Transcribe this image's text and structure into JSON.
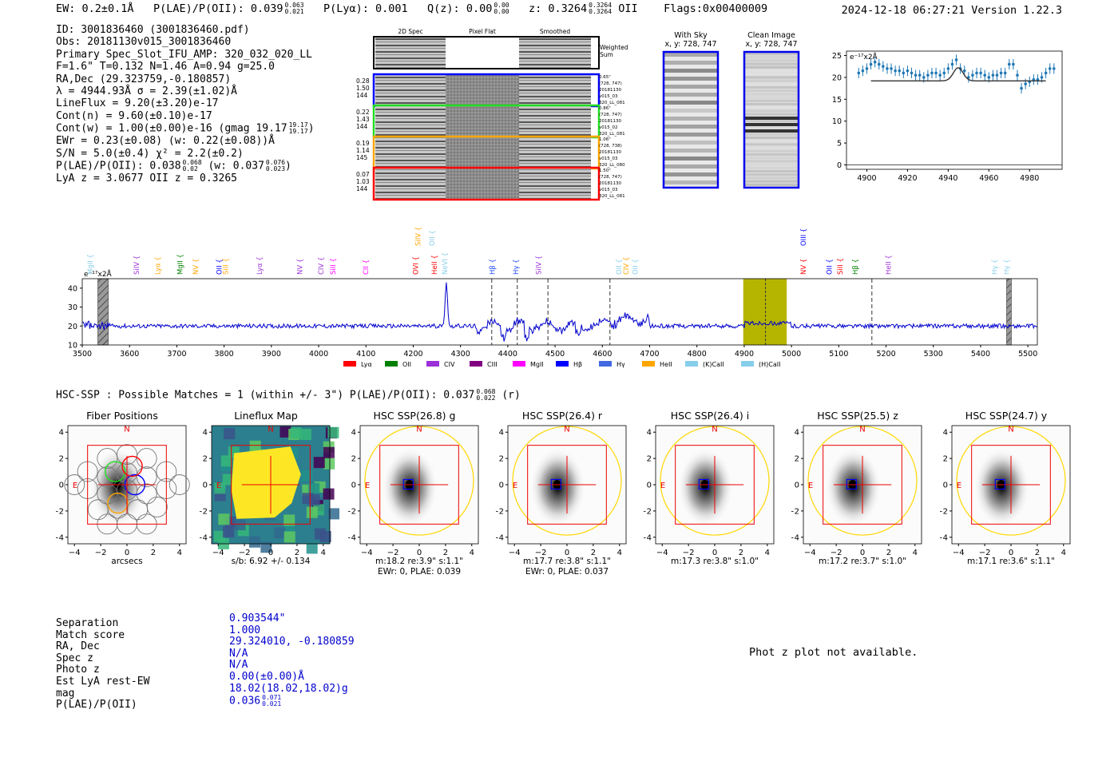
{
  "header": {
    "ew": "EW: 0.2±0.1Å",
    "plae_label": "P(LAE)/P(OII): 0.039",
    "plae_hi": "0.063",
    "plae_lo": "0.021",
    "plya": "P(Lyα): 0.001",
    "qz_label": "Q(z): 0.00",
    "qz_hi": "0.00",
    "qz_lo": "0.00",
    "z_label": "z: 0.3264",
    "z_hi": "0.3264",
    "z_lo": "0.3264",
    "z_line": "OII",
    "flags": "Flags:0x00400009",
    "timestamp": "2024-12-18 06:27:21  Version 1.22.3"
  },
  "info": {
    "id": "ID: 3001836460 (3001836460.pdf)",
    "obs": "Obs: 20181130v015_3001836460",
    "primary": "Primary Spec_Slot_IFU_AMP: 320_032_020_LL",
    "fit": "F=1.6\"  T=0.132  N=1.46  A=0.94  g=25.0",
    "radec": "RA,Dec (29.323759,-0.180857)",
    "lambda": "λ = 4944.93Å  σ = 2.39(±1.02)Å",
    "lineflux": "LineFlux = 9.20(±3.20)e-17",
    "contn": "Cont(n) = 9.60(±0.10)e-17",
    "contw": "Cont(w) = 1.00(±0.00)e-16 (gmag 19.17",
    "contw_hi": "19.17",
    "contw_lo": "19.17",
    "contw_end": ")",
    "ewr": "EWr = 0.23(±0.08) (w: 0.22(±0.08))Å",
    "sn": "S/N = 5.0(±0.4)  χ² = 2.2(±0.2)",
    "plae": "P(LAE)/P(OII): 0.038",
    "plae_hi": "0.068",
    "plae_lo": "0.02",
    "plae_w": "(w: 0.037",
    "plae_w_hi": "0.076",
    "plae_w_lo": "0.023",
    "plae_end": ")",
    "lya_oii": "LyA z = 3.0677  OII z = 0.3265"
  },
  "twod": {
    "col_headers": [
      "2D Spec",
      "Pixel Flat",
      "Smoothed"
    ],
    "weighted_sum": "Weighted Sum",
    "rows": [
      {
        "left": [
          "0.28",
          "1.50",
          "144"
        ],
        "right": [
          "0.65\"",
          "(728, 747)",
          "20181130",
          "v015_03",
          "320_LL_081"
        ],
        "color": "#0000ff"
      },
      {
        "left": [
          "0.22",
          "1.43",
          "144"
        ],
        "right": [
          "0.86\"",
          "(728, 747)",
          "20181130",
          "v015_02",
          "320_LL_081"
        ],
        "color": "#22dd22"
      },
      {
        "left": [
          "0.19",
          "1.14",
          "145"
        ],
        "right": [
          "1.06\"",
          "(728, 738)",
          "20181130",
          "v015_03",
          "320_LL_080"
        ],
        "color": "#ffa500"
      },
      {
        "left": [
          "0.07",
          "1.03",
          "144"
        ],
        "right": [
          "1.50\"",
          "(728, 747)",
          "20181130",
          "v015_03",
          "320_LL_081"
        ],
        "color": "#ff0000"
      }
    ]
  },
  "sky": {
    "with_sky_title": "With Sky",
    "with_sky_coords": "x, y: 728, 747",
    "clean_title": "Clean Image",
    "clean_coords": "x, y: 728, 747"
  },
  "colors": {
    "spectrum": "#0000cc",
    "emission_hl": "#b5b500",
    "fiber_blue": "#0000ff",
    "fiber_green": "#22dd22",
    "fiber_orange": "#ffa500",
    "fiber_red": "#ff0000",
    "aperture": "#ffd700"
  },
  "chart_data": [
    {
      "id": "zoom-spectrum",
      "type": "line",
      "unit_label": "e⁻¹⁷x2Å",
      "xlim": [
        4890,
        4996
      ],
      "ylim": [
        -1,
        26
      ],
      "xticks": [
        4900,
        4920,
        4940,
        4960,
        4980
      ],
      "yticks": [
        0,
        5,
        10,
        15,
        20,
        25
      ],
      "points": [
        [
          4896,
          21
        ],
        [
          4898,
          21.5
        ],
        [
          4900,
          22
        ],
        [
          4902,
          23
        ],
        [
          4904,
          23.5
        ],
        [
          4906,
          23
        ],
        [
          4908,
          22.5
        ],
        [
          4910,
          22
        ],
        [
          4912,
          22
        ],
        [
          4914,
          21.5
        ],
        [
          4916,
          21.5
        ],
        [
          4918,
          21
        ],
        [
          4920,
          21.5
        ],
        [
          4922,
          21
        ],
        [
          4924,
          20.5
        ],
        [
          4926,
          20.5
        ],
        [
          4928,
          20
        ],
        [
          4930,
          20.5
        ],
        [
          4932,
          21
        ],
        [
          4934,
          21
        ],
        [
          4936,
          20.5
        ],
        [
          4938,
          21
        ],
        [
          4940,
          22
        ],
        [
          4942,
          23
        ],
        [
          4944,
          24
        ],
        [
          4946,
          22
        ],
        [
          4948,
          21.5
        ],
        [
          4950,
          20
        ],
        [
          4952,
          20.5
        ],
        [
          4954,
          21
        ],
        [
          4956,
          21
        ],
        [
          4958,
          20.5
        ],
        [
          4960,
          20
        ],
        [
          4962,
          20.5
        ],
        [
          4964,
          20.5
        ],
        [
          4966,
          21
        ],
        [
          4968,
          21
        ],
        [
          4970,
          23
        ],
        [
          4972,
          23
        ],
        [
          4974,
          20.5
        ],
        [
          4976,
          17.5
        ],
        [
          4978,
          18.5
        ],
        [
          4980,
          19
        ],
        [
          4982,
          19.5
        ],
        [
          4984,
          19.5
        ],
        [
          4986,
          20
        ],
        [
          4988,
          21
        ],
        [
          4990,
          22
        ],
        [
          4992,
          22
        ]
      ],
      "fit": {
        "center": 4944.93,
        "sigma": 2.39,
        "base": 19.2,
        "peak": 3.0
      }
    },
    {
      "id": "full-spectrum",
      "type": "line",
      "unit_label": "e⁻¹⁷x2Å",
      "xlim": [
        3500,
        5520
      ],
      "ylim": [
        10,
        45
      ],
      "xticks": [
        3500,
        3600,
        3700,
        3800,
        3900,
        4000,
        4100,
        4200,
        4300,
        4400,
        4500,
        4600,
        4700,
        4800,
        4900,
        5000,
        5100,
        5200,
        5300,
        5400,
        5500
      ],
      "yticks": [
        10,
        20,
        30,
        40
      ],
      "highlight": [
        4898,
        4990
      ],
      "highlight_center": 4945,
      "hatched_bands": [
        [
          3533,
          3555
        ],
        [
          5455,
          5465
        ]
      ],
      "dashed_lines": [
        4366,
        4420,
        4485,
        4616,
        5170
      ],
      "peak": {
        "x": 4270,
        "y": 43
      },
      "upper_labels": [
        {
          "text": "SiIV",
          "x": 4215,
          "color": "#ffa500"
        },
        {
          "text": "OII",
          "x": 4245,
          "color": "#87ceeb"
        },
        {
          "text": "OIII",
          "x": 5030,
          "color": "#0000ff"
        }
      ],
      "lines_labels": [
        {
          "text": "MgII",
          "x": 3522,
          "color": "#87ceeb"
        },
        {
          "text": "SiIV",
          "x": 3620,
          "color": "#9b30d9"
        },
        {
          "text": "Lyα",
          "x": 3665,
          "color": "#ffa500"
        },
        {
          "text": "MgII",
          "x": 3712,
          "color": "#008000"
        },
        {
          "text": "NV",
          "x": 3745,
          "color": "#ffa500"
        },
        {
          "text": "OII",
          "x": 3795,
          "color": "#0000ff"
        },
        {
          "text": "SiII",
          "x": 3808,
          "color": "#ffa500"
        },
        {
          "text": "Lyα",
          "x": 3880,
          "color": "#9b30d9"
        },
        {
          "text": "NV",
          "x": 3965,
          "color": "#9b30d9"
        },
        {
          "text": "CIV",
          "x": 4010,
          "color": "#9b30d9"
        },
        {
          "text": "SiII",
          "x": 4035,
          "color": "#ff00ff"
        },
        {
          "text": "CII",
          "x": 4105,
          "color": "#ff00ff"
        },
        {
          "text": "OVI",
          "x": 4210,
          "color": "#ff0000"
        },
        {
          "text": "HeII",
          "x": 4250,
          "color": "#ff0000"
        },
        {
          "text": "NeVI",
          "x": 4272,
          "color": "#87ceeb"
        },
        {
          "text": "Hβ",
          "x": 4372,
          "color": "#1a44ff"
        },
        {
          "text": "Hγ",
          "x": 4422,
          "color": "#1a44ff"
        },
        {
          "text": "SiIV",
          "x": 4470,
          "color": "#9b30d9"
        },
        {
          "text": "OII",
          "x": 4640,
          "color": "#87ceeb"
        },
        {
          "text": "CIV",
          "x": 4655,
          "color": "#ffa500"
        },
        {
          "text": "OII",
          "x": 4675,
          "color": "#87ceeb"
        },
        {
          "text": "NV",
          "x": 5030,
          "color": "#ff0000"
        },
        {
          "text": "OII",
          "x": 5085,
          "color": "#0000ff"
        },
        {
          "text": "SiII",
          "x": 5108,
          "color": "#ff0000"
        },
        {
          "text": "Hβ",
          "x": 5140,
          "color": "#008000"
        },
        {
          "text": "HeII",
          "x": 5210,
          "color": "#9b30d9"
        },
        {
          "text": "Hγ",
          "x": 5435,
          "color": "#87ceeb"
        },
        {
          "text": "Hγ",
          "x": 5460,
          "color": "#87ceeb"
        }
      ],
      "legend": [
        {
          "text": "Lyα",
          "color": "#ff0000"
        },
        {
          "text": "OII",
          "color": "#008000"
        },
        {
          "text": "CIV",
          "color": "#9b30d9"
        },
        {
          "text": "CIII",
          "color": "#800080"
        },
        {
          "text": "MgII",
          "color": "#ff00ff"
        },
        {
          "text": "Hβ",
          "color": "#0000ff"
        },
        {
          "text": "Hγ",
          "color": "#4169e1"
        },
        {
          "text": "HeII",
          "color": "#ffa500"
        },
        {
          "text": "(K)CaII",
          "color": "#87ceeb"
        },
        {
          "text": "(H)CaII",
          "color": "#87ceeb"
        }
      ]
    }
  ],
  "match_line": {
    "text": "HSC-SSP : Possible Matches = 1 (within +/- 3\")  P(LAE)/P(OII): 0.037",
    "hi": "0.068",
    "lo": "0.022",
    "end": "(r)"
  },
  "cutouts": [
    {
      "title": "Fiber Positions",
      "foot1": "arcsecs",
      "foot2": "",
      "kind": "fiber"
    },
    {
      "title": "Lineflux Map",
      "foot1": "s/b: 6.92 +/- 0.134",
      "foot2": "",
      "kind": "lineflux"
    },
    {
      "title": "HSC SSP(26.8) g",
      "foot1": "m:18.2  re:3.9\"  s:1.1\"",
      "foot2": "EWr: 0, PLAE: 0.039",
      "kind": "hsc"
    },
    {
      "title": "HSC SSP(26.4) r",
      "foot1": "m:17.7  re:3.8\"  s:1.1\"",
      "foot2": "EWr: 0, PLAE: 0.037",
      "kind": "hsc"
    },
    {
      "title": "HSC SSP(26.4) i",
      "foot1": "m:17.3  re:3.8\"  s:1.0\"",
      "foot2": "",
      "kind": "hsc"
    },
    {
      "title": "HSC SSP(25.5) z",
      "foot1": "m:17.2  re:3.7\"  s:1.0\"",
      "foot2": "",
      "kind": "hsc"
    },
    {
      "title": "HSC SSP(24.7) y",
      "foot1": "m:17.1  re:3.6\"  s:1.1\"",
      "foot2": "",
      "kind": "hsc"
    }
  ],
  "cutout_axes": {
    "ticks": [
      "−4",
      "−2",
      "0",
      "2",
      "4"
    ],
    "n_label": "N",
    "e_label": "E"
  },
  "match_table": {
    "labels": [
      "Separation",
      "Match score",
      "RA, Dec",
      "Spec z",
      "Photo z",
      "Est LyA rest-EW",
      "mag",
      "P(LAE)/P(OII)"
    ],
    "values": [
      "0.903544\"",
      "1.000",
      "29.324010, -0.180859",
      "N/A",
      "N/A",
      "0.00(±0.00)Å",
      "18.02(18.02,18.02)g",
      "0.036"
    ],
    "plae_hi": "0.071",
    "plae_lo": "0.021"
  },
  "photz_note": "Phot z plot not available."
}
